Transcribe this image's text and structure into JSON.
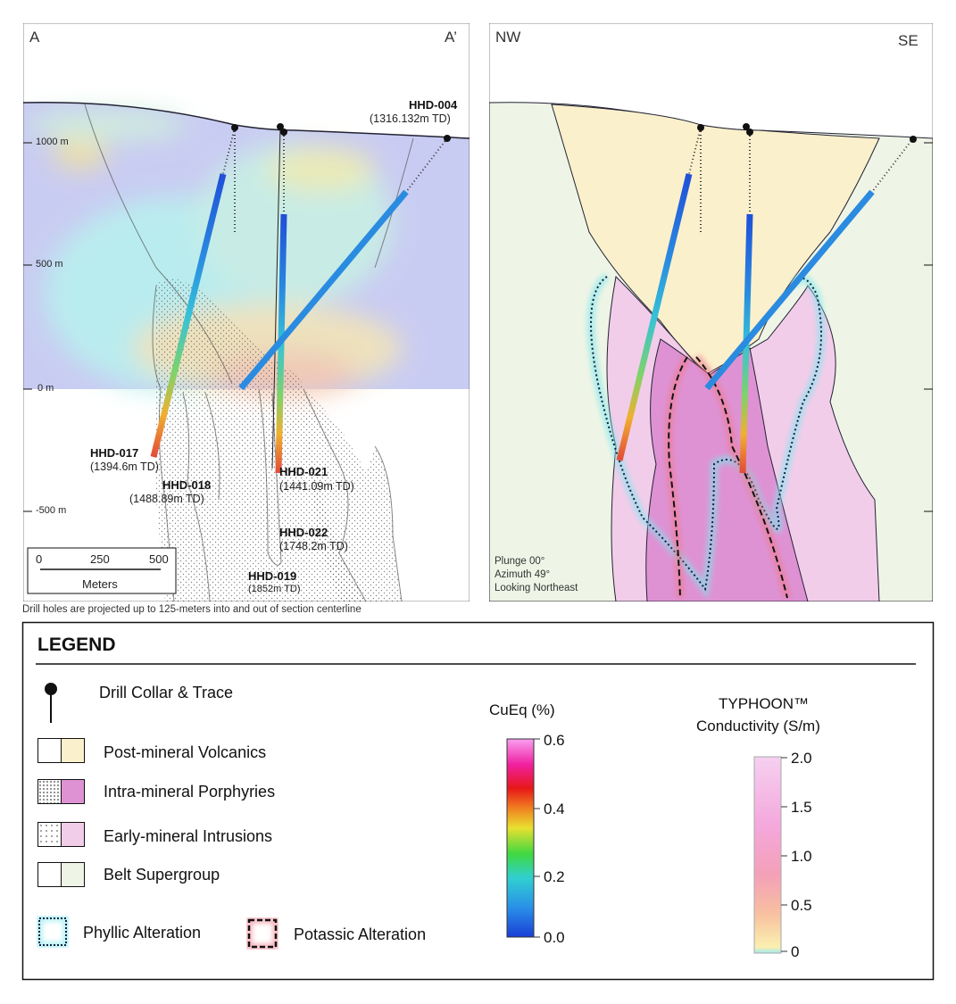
{
  "left_section": {
    "corner_left": "A",
    "corner_right": "A’",
    "elevation_ticks": [
      "1000 m",
      "500 m",
      "0 m",
      "-500 m"
    ],
    "holes": [
      {
        "name": "HHD-004",
        "td": "(1316.132m TD)"
      },
      {
        "name": "HHD-017",
        "td": "(1394.6m TD)"
      },
      {
        "name": "HHD-018",
        "td": "(1488.89m TD)"
      },
      {
        "name": "HHD-021",
        "td": "(1441.09m TD)"
      },
      {
        "name": "HHD-022",
        "td": "(1748.2m TD)"
      },
      {
        "name": "HHD-019",
        "td": "(1852m TD)"
      }
    ],
    "scale_bar": {
      "ticks": [
        "0",
        "250",
        "500"
      ],
      "unit": "Meters"
    }
  },
  "right_section": {
    "corner_left": "NW",
    "corner_right": "SE",
    "view_info": [
      "Plunge 00°",
      "Azimuth 49°",
      "Looking Northeast"
    ]
  },
  "caption": "Drill holes are projected up to 125-meters into and out of section centerline",
  "legend": {
    "title": "LEGEND",
    "collar": "Drill Collar & Trace",
    "units": [
      {
        "label": "Post-mineral Volcanics",
        "color": "#fbf0cc",
        "pattern": "plain"
      },
      {
        "label": "Intra-mineral Porphyries",
        "color": "#de92d4",
        "pattern": "dense-stipple"
      },
      {
        "label": "Early-mineral Intrusions",
        "color": "#f2cdea",
        "pattern": "stipple"
      },
      {
        "label": "Belt Supergroup",
        "color": "#eef5e6",
        "pattern": "plain"
      }
    ],
    "phyllic": "Phyllic Alteration",
    "potassic": "Potassic Alteration",
    "cueq": {
      "title": "CuEq (%)",
      "ticks": [
        "0.6",
        "0.4",
        "0.2",
        "0.0"
      ]
    },
    "conductivity": {
      "title_line1": "TYPHOON™",
      "title_line2": "Conductivity (S/m)",
      "ticks": [
        "2.0",
        "1.5",
        "1.0",
        "0.5",
        "0"
      ]
    }
  },
  "colors": {
    "phyllic_glow": "#7fe6ec",
    "potassic_glow": "#f07a8a",
    "border": "#111111"
  }
}
